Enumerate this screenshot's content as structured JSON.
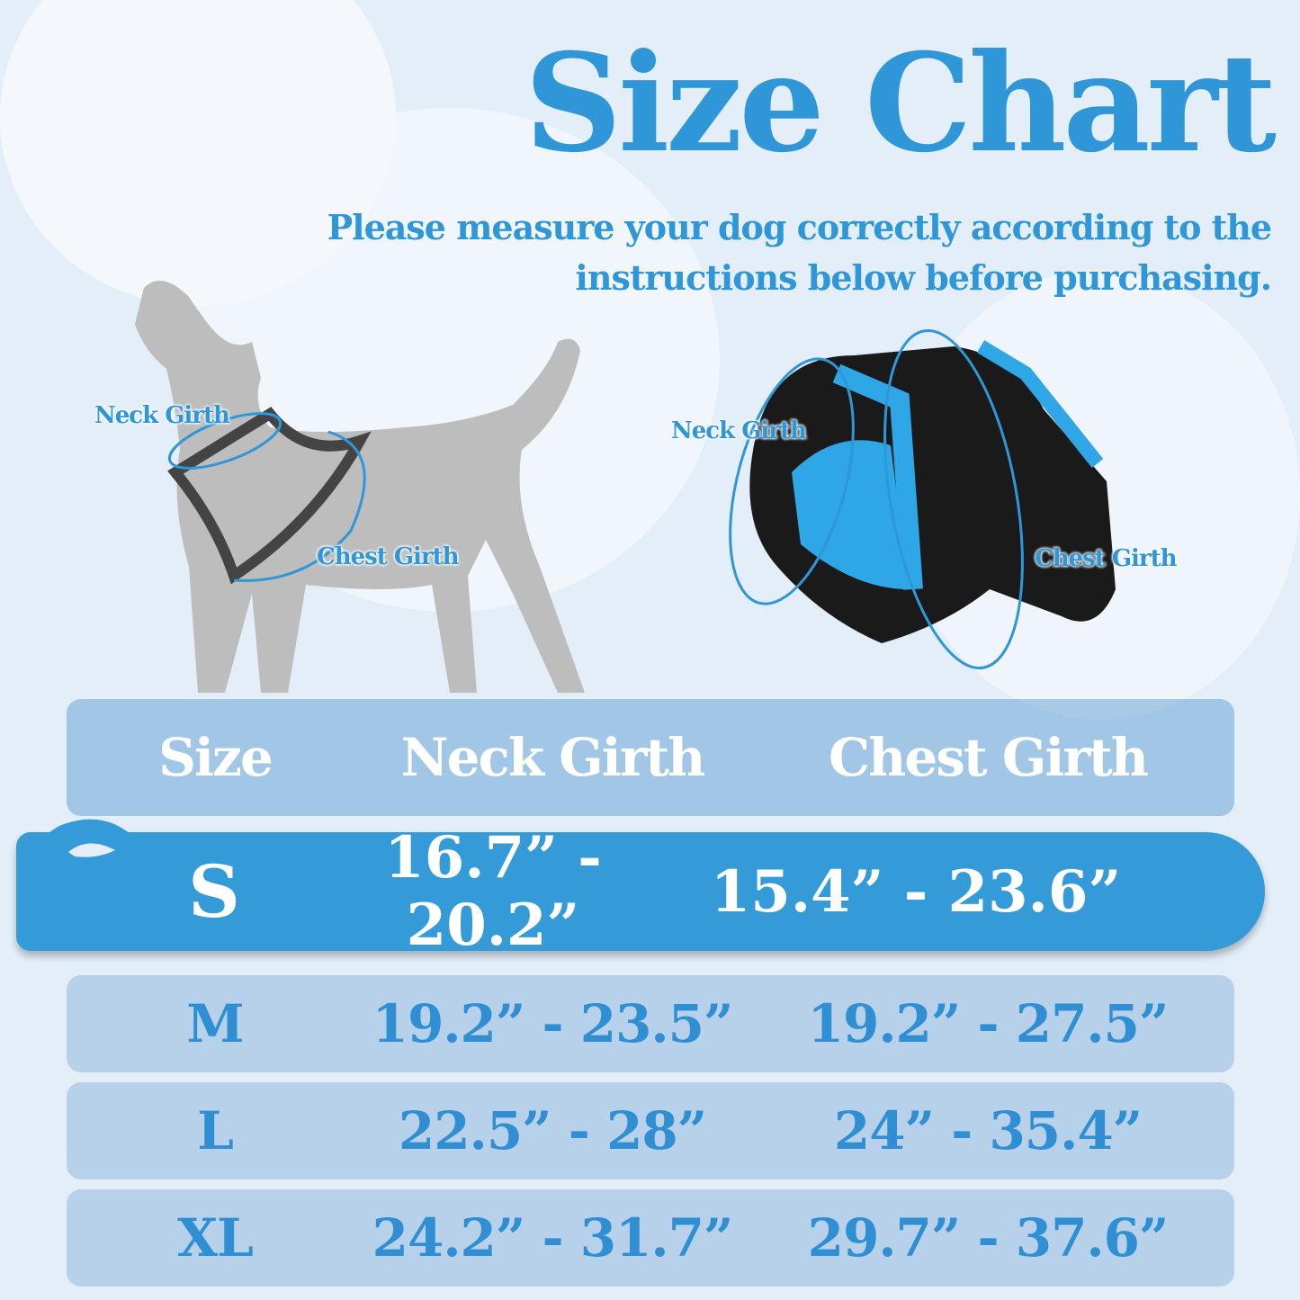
{
  "title": "Size Chart",
  "subtitle": "Please measure your dog correctly according to the instructions below before purchasing.",
  "dog_diagram": {
    "neck_label": "Neck Girth",
    "chest_label": "Chest Girth"
  },
  "harness_diagram": {
    "neck_label": "Neck Girth",
    "chest_label": "Chest Girth"
  },
  "table": {
    "headers": [
      "Size",
      "Neck Girth",
      "Chest Girth"
    ],
    "highlighted_size": "S",
    "rows": [
      {
        "size": "S",
        "neck": "16.7” - 20.2”",
        "chest": "15.4” - 23.6”"
      },
      {
        "size": "M",
        "neck": "19.2” - 23.5”",
        "chest": "19.2” - 27.5”"
      },
      {
        "size": "L",
        "neck": "22.5” - 28”",
        "chest": "24” - 35.4”"
      },
      {
        "size": "XL",
        "neck": "24.2” - 31.7”",
        "chest": "29.7” - 37.6”"
      }
    ]
  },
  "colors": {
    "accent": "#359bd8",
    "background": "#e3eef8",
    "row": "#b3cde6",
    "harness_blue": "#2fa6e6",
    "dog_gray": "#bdbdbd"
  }
}
